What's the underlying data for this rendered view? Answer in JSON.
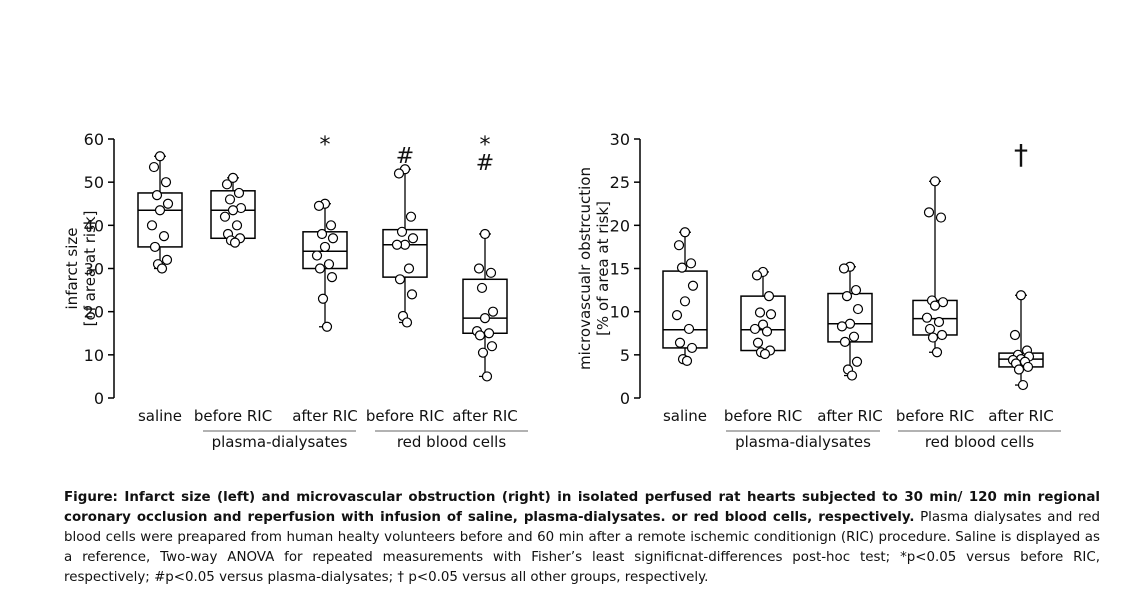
{
  "chart_data": [
    {
      "type": "box",
      "ylabel": [
        "infarct size",
        "[of area at risk]"
      ],
      "ylim": [
        0,
        60
      ],
      "yticks": [
        0,
        10,
        20,
        30,
        40,
        50,
        60
      ],
      "categories": [
        "saline",
        "before RIC",
        "after RIC",
        "before RIC",
        "after RIC"
      ],
      "groups": [
        {
          "label": "plasma-dialysates",
          "categories": [
            1,
            2
          ]
        },
        {
          "label": "red blood cells",
          "categories": [
            3,
            4
          ]
        }
      ],
      "boxes": [
        {
          "min": 30,
          "q1": 35,
          "median": 43.5,
          "q3": 47.5,
          "max": 56
        },
        {
          "min": 36,
          "q1": 37,
          "median": 43.5,
          "q3": 48,
          "max": 51
        },
        {
          "min": 16.5,
          "q1": 30,
          "median": 34,
          "q3": 38.5,
          "max": 45
        },
        {
          "min": 17.5,
          "q1": 28,
          "median": 35.5,
          "q3": 39,
          "max": 53
        },
        {
          "min": 5,
          "q1": 15,
          "median": 18.5,
          "q3": 27.5,
          "max": 38
        }
      ],
      "points": [
        [
          56,
          53.5,
          50,
          47,
          45,
          43.5,
          40,
          37.5,
          35,
          32,
          31,
          30
        ],
        [
          51,
          49.5,
          47.5,
          46,
          44,
          43.5,
          42,
          40,
          38,
          37,
          36.5,
          36
        ],
        [
          45,
          44.5,
          40,
          38,
          37,
          35,
          33,
          31,
          30,
          28,
          23,
          16.5
        ],
        [
          53,
          52,
          42,
          38.5,
          37,
          35.5,
          35.5,
          30,
          27.5,
          24,
          19,
          17.5
        ],
        [
          38,
          30,
          29,
          25.5,
          20,
          18.5,
          15.5,
          15,
          14.5,
          12,
          10.5,
          5
        ]
      ],
      "annotations": [
        {
          "category": 2,
          "text": "*"
        },
        {
          "category": 3,
          "text": "#"
        },
        {
          "category": 4,
          "text": "*\n#"
        }
      ]
    },
    {
      "type": "box",
      "ylabel": [
        "microvascualr obstrcuction",
        "[% of area at risk]"
      ],
      "ylim": [
        0,
        30
      ],
      "yticks": [
        0,
        5,
        10,
        15,
        20,
        25,
        30
      ],
      "categories": [
        "saline",
        "before RIC",
        "after RIC",
        "before RIC",
        "after RIC"
      ],
      "groups": [
        {
          "label": "plasma-dialysates",
          "categories": [
            1,
            2
          ]
        },
        {
          "label": "red blood cells",
          "categories": [
            3,
            4
          ]
        }
      ],
      "boxes": [
        {
          "min": 4.3,
          "q1": 5.8,
          "median": 7.9,
          "q3": 14.7,
          "max": 19.2
        },
        {
          "min": 5.1,
          "q1": 5.5,
          "median": 7.9,
          "q3": 11.8,
          "max": 14.6
        },
        {
          "min": 2.6,
          "q1": 6.5,
          "median": 8.6,
          "q3": 12.1,
          "max": 15.2
        },
        {
          "min": 5.3,
          "q1": 7.3,
          "median": 9.2,
          "q3": 11.3,
          "max": 25.1
        },
        {
          "min": 1.5,
          "q1": 3.6,
          "median": 4.5,
          "q3": 5.2,
          "max": 11.9
        }
      ],
      "points": [
        [
          19.2,
          17.7,
          15.6,
          15.1,
          13,
          11.2,
          9.6,
          8,
          6.4,
          5.8,
          4.5,
          4.3
        ],
        [
          14.6,
          14.2,
          11.8,
          9.9,
          9.7,
          8.5,
          8,
          7.7,
          6.4,
          5.5,
          5.3,
          5.1
        ],
        [
          15.2,
          15,
          12.5,
          11.8,
          10.3,
          8.6,
          8.3,
          7.1,
          6.5,
          4.2,
          3.3,
          2.6
        ],
        [
          25.1,
          21.5,
          20.9,
          11.3,
          11.1,
          10.7,
          9.3,
          8.8,
          8,
          7.3,
          7,
          5.3
        ],
        [
          11.9,
          7.3,
          5.5,
          5,
          4.8,
          4.5,
          4.4,
          4.2,
          4,
          3.6,
          3.3,
          1.5
        ]
      ],
      "annotations": [
        {
          "category": 4,
          "text": "†"
        }
      ]
    }
  ],
  "caption": {
    "bold": "Figure: Infarct size (left) and microvascular obstruction (right) in isolated perfused rat hearts subjected to 30 min/ 120 min regional coronary occlusion and reperfusion with infusion of saline, plasma-dialysates. or red blood cells, respectively.",
    "text": " Plasma dialysates and red blood cells were preapared from human healty volunteers before and 60 min after a remote ischemic conditionign (RIC) procedure. Saline is displayed as a reference, Two-way ANOVA for repeated measurements with Fisher’s least significnat-differences post-hoc test; *p<0.05 versus before RIC, respectively; #p<0.05 versus plasma-dialysates; † p<0.05 versus all other groups, respectively."
  }
}
